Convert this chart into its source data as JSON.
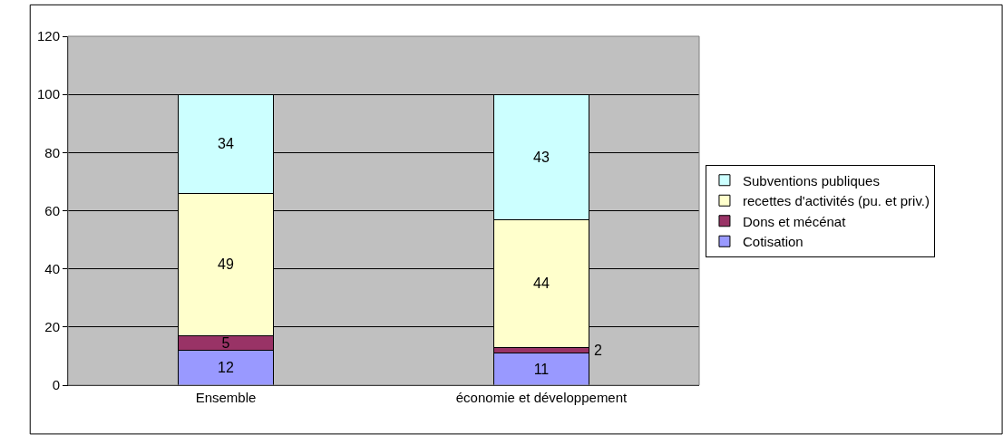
{
  "chart_data": {
    "type": "bar",
    "stacked": true,
    "categories": [
      "Ensemble",
      "économie et développement"
    ],
    "series": [
      {
        "name": "Cotisation",
        "color": "#9999ff",
        "values": [
          12,
          11
        ]
      },
      {
        "name": "Dons et mécénat",
        "color": "#993366",
        "values": [
          5,
          2
        ]
      },
      {
        "name": "recettes d'activités (pu. et priv.)",
        "color": "#ffffcc",
        "values": [
          49,
          44
        ]
      },
      {
        "name": "Subventions publiques",
        "color": "#ccffff",
        "values": [
          34,
          43
        ]
      }
    ],
    "ylim": [
      0,
      120
    ],
    "yticks": [
      0,
      20,
      40,
      60,
      80,
      100,
      120
    ],
    "grid": "y",
    "legend": "right",
    "data_labels": true
  }
}
